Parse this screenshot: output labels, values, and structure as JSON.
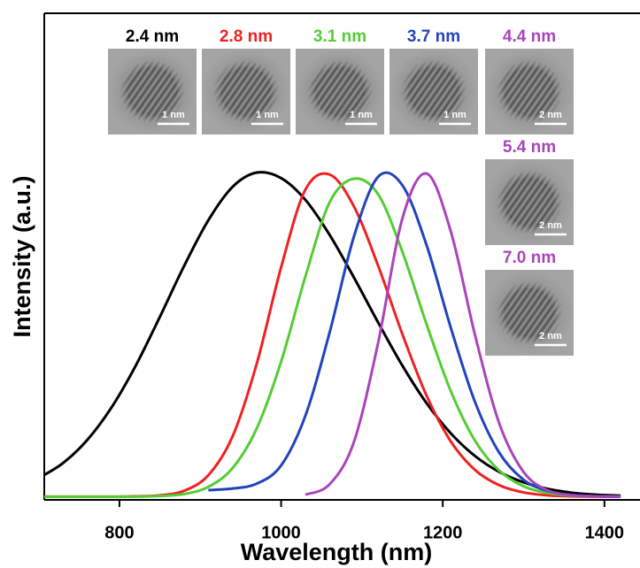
{
  "chart_data": {
    "type": "line",
    "x_label": "Wavelength (nm)",
    "y_label": "Intensity (a.u.)",
    "xlim": [
      707,
      1444
    ],
    "ylim": [
      -0.01,
      1.49
    ],
    "xticks": [
      800,
      1000,
      1200,
      1400
    ],
    "x": [
      700,
      730,
      760,
      790,
      820,
      850,
      880,
      910,
      940,
      970,
      1000,
      1030,
      1060,
      1090,
      1120,
      1150,
      1180,
      1210,
      1240,
      1270,
      1300,
      1330,
      1360,
      1390,
      1420
    ],
    "series": [
      {
        "name": "2.4 nm",
        "color": "#000000",
        "values": [
          0.057,
          0.103,
          0.174,
          0.274,
          0.403,
          0.554,
          0.711,
          0.852,
          0.955,
          0.999,
          0.982,
          0.915,
          0.807,
          0.676,
          0.537,
          0.404,
          0.288,
          0.195,
          0.125,
          0.076,
          0.044,
          0.024,
          0.012,
          0.006,
          0.003
        ]
      },
      {
        "name": "2.8 nm",
        "color": "#ee2222",
        "values": [
          0,
          0,
          0,
          0,
          0.001,
          0.004,
          0.018,
          0.066,
          0.186,
          0.411,
          0.707,
          0.946,
          0.993,
          0.895,
          0.712,
          0.501,
          0.311,
          0.17,
          0.082,
          0.035,
          0.013,
          0.004,
          0.001,
          0,
          0
        ]
      },
      {
        "name": "3.1 nm",
        "color": "#55cc33",
        "values": [
          0,
          0,
          0,
          0,
          0,
          0.002,
          0.008,
          0.03,
          0.088,
          0.211,
          0.416,
          0.678,
          0.907,
          0.98,
          0.932,
          0.755,
          0.531,
          0.325,
          0.172,
          0.08,
          0.032,
          0.011,
          0.003,
          0.001,
          0
        ]
      },
      {
        "name": "3.7 nm",
        "color": "#2244bb",
        "values": [
          null,
          null,
          null,
          null,
          null,
          null,
          null,
          0.02,
          0.025,
          0.04,
          0.096,
          0.249,
          0.506,
          0.801,
          0.986,
          0.96,
          0.775,
          0.52,
          0.291,
          0.135,
          0.052,
          0.017,
          0.005,
          0.001,
          0
        ]
      },
      {
        "name": "4.4 nm",
        "color": "#aa44bb",
        "values": [
          null,
          null,
          null,
          null,
          null,
          null,
          null,
          null,
          null,
          null,
          null,
          0.006,
          0.038,
          0.168,
          0.474,
          0.857,
          0.996,
          0.817,
          0.497,
          0.225,
          0.076,
          0.019,
          0.004,
          0.001,
          0
        ]
      }
    ],
    "insets": [
      {
        "label": "2.4 nm",
        "scale": "1 nm",
        "color": "#000000"
      },
      {
        "label": "2.8 nm",
        "scale": "1 nm",
        "color": "#ee2222"
      },
      {
        "label": "3.1 nm",
        "scale": "1 nm",
        "color": "#55cc33"
      },
      {
        "label": "3.7 nm",
        "scale": "1 nm",
        "color": "#2244bb"
      },
      {
        "label": "4.4 nm",
        "scale": "2 nm",
        "color": "#aa44bb"
      },
      {
        "label": "5.4 nm",
        "scale": "2 nm",
        "color": "#aa44bb"
      },
      {
        "label": "7.0 nm",
        "scale": "2 nm",
        "color": "#aa44bb"
      }
    ]
  }
}
